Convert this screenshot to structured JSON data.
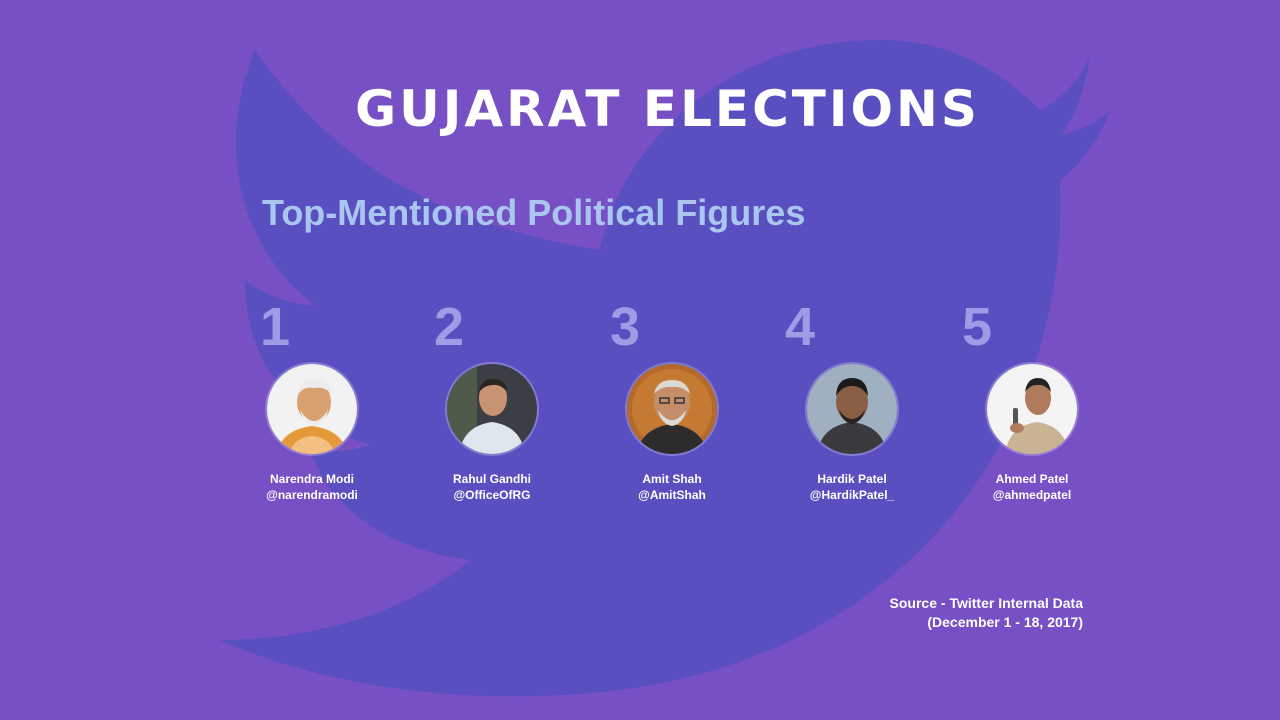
{
  "title": "GUJARAT ELECTIONS",
  "subtitle": "Top-Mentioned Political Figures",
  "people": [
    {
      "rank": "1",
      "name": "Narendra Modi",
      "handle": "@narendramodi"
    },
    {
      "rank": "2",
      "name": "Rahul Gandhi",
      "handle": "@OfficeOfRG"
    },
    {
      "rank": "3",
      "name": "Amit Shah",
      "handle": "@AmitShah"
    },
    {
      "rank": "4",
      "name": "Hardik Patel",
      "handle": "@HardikPatel_"
    },
    {
      "rank": "5",
      "name": "Ahmed Patel",
      "handle": "@ahmedpatel"
    }
  ],
  "source": {
    "line1": "Source - Twitter Internal Data",
    "line2": "(December 1 - 18, 2017)"
  },
  "colors": {
    "background": "#7650c4",
    "bird": "#5a4fc0",
    "subtitle": "#a9c6ef",
    "rank": "#9f9be6"
  },
  "icons": {
    "background": "twitter-bird-icon"
  }
}
